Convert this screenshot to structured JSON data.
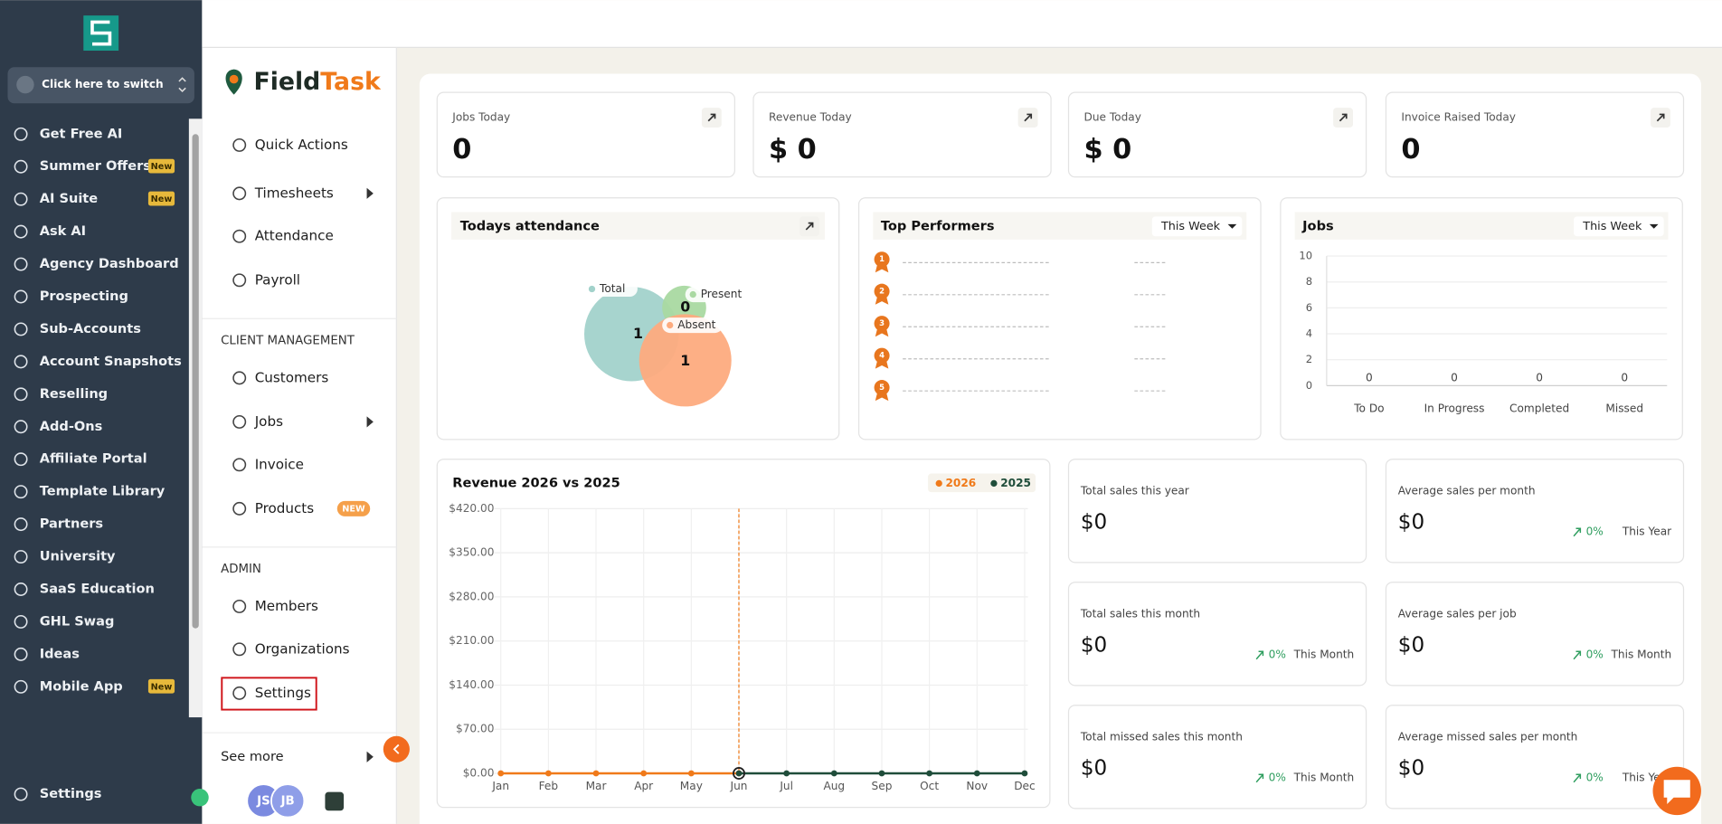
{
  "sidebar": {
    "switch": "Click here to switch",
    "items": [
      {
        "label": "Get Free AI"
      },
      {
        "label": "Summer Offers",
        "badge": "New"
      },
      {
        "label": "AI Suite",
        "badge": "New"
      },
      {
        "label": "Ask AI"
      },
      {
        "label": "Agency Dashboard"
      },
      {
        "label": "Prospecting"
      },
      {
        "label": "Sub-Accounts"
      },
      {
        "label": "Account Snapshots"
      },
      {
        "label": "Reselling"
      },
      {
        "label": "Add-Ons"
      },
      {
        "label": "Affiliate Portal"
      },
      {
        "label": "Template Library"
      },
      {
        "label": "Partners"
      },
      {
        "label": "University"
      },
      {
        "label": "SaaS Education"
      },
      {
        "label": "GHL Swag"
      },
      {
        "label": "Ideas"
      },
      {
        "label": "Mobile App",
        "badge": "New"
      }
    ],
    "footer": "Settings"
  },
  "nav": {
    "brand_a": "Field",
    "brand_b": "Task",
    "groups": [
      {
        "items": [
          {
            "label": "Quick Actions"
          },
          {
            "label": "Timesheets"
          },
          {
            "label": "Attendance"
          },
          {
            "label": "Payroll"
          }
        ]
      },
      {
        "heading": "CLIENT MANAGEMENT",
        "items": [
          {
            "label": "Customers"
          },
          {
            "label": "Jobs"
          },
          {
            "label": "Invoice"
          },
          {
            "label": "Products",
            "badge": "NEW"
          }
        ]
      },
      {
        "heading": "ADMIN",
        "items": [
          {
            "label": "Members"
          },
          {
            "label": "Organizations"
          },
          {
            "label": "Settings"
          }
        ]
      }
    ],
    "see_more": "See more",
    "avatars": [
      "JS",
      "JB"
    ]
  },
  "stats": [
    {
      "label": "Jobs Today",
      "value": "0"
    },
    {
      "label": "Revenue Today",
      "value": "$ 0"
    },
    {
      "label": "Due Today",
      "value": "$ 0"
    },
    {
      "label": "Invoice Raised Today",
      "value": "0"
    }
  ],
  "attendance": {
    "title": "Todays attendance",
    "series": [
      {
        "name": "Total",
        "value": 1
      },
      {
        "name": "Present",
        "value": 0
      },
      {
        "name": "Absent",
        "value": 1
      }
    ]
  },
  "performers": {
    "title": "Top Performers",
    "filter": "This Week",
    "ranks": [
      "1",
      "2",
      "3",
      "4",
      "5"
    ]
  },
  "jobs": {
    "title": "Jobs",
    "filter": "This Week",
    "categories": [
      "To Do",
      "In Progress",
      "Completed",
      "Missed"
    ],
    "values": [
      0,
      0,
      0,
      0
    ],
    "ylim": [
      0,
      10
    ],
    "yticks": [
      0,
      2,
      4,
      6,
      8,
      10
    ]
  },
  "revenue": {
    "title": "Revenue 2026 vs 2025",
    "categories": [
      "Jan",
      "Feb",
      "Mar",
      "Apr",
      "May",
      "Jun",
      "Jul",
      "Aug",
      "Sep",
      "Oct",
      "Nov",
      "Dec"
    ],
    "series": [
      {
        "name": "2026",
        "color": "#f07a1a",
        "values": [
          0,
          0,
          0,
          0,
          0,
          0,
          null,
          null,
          null,
          null,
          null,
          null
        ]
      },
      {
        "name": "2025",
        "color": "#1f4d3a",
        "values": [
          null,
          null,
          null,
          null,
          null,
          0,
          0,
          0,
          0,
          0,
          0,
          0
        ]
      }
    ],
    "ylim": [
      0,
      420
    ],
    "yticks": [
      {
        "value": 0,
        "label": "$0.00"
      },
      {
        "value": 70,
        "label": "$70.00"
      },
      {
        "value": 140,
        "label": "$140.00"
      },
      {
        "value": 210,
        "label": "$210.00"
      },
      {
        "value": 280,
        "label": "$280.00"
      },
      {
        "value": 350,
        "label": "$350.00"
      },
      {
        "value": 420,
        "label": "$420.00"
      }
    ]
  },
  "sales": [
    {
      "label": "Total sales this year",
      "value": "$0"
    },
    {
      "label": "Average sales per month",
      "value": "$0",
      "change": "0%",
      "period": "This Year"
    },
    {
      "label": "Total sales this month",
      "value": "$0",
      "change": "0%",
      "period": "This Month"
    },
    {
      "label": "Average sales per job",
      "value": "$0",
      "change": "0%",
      "period": "This Month"
    },
    {
      "label": "Total missed sales this month",
      "value": "$0",
      "change": "0%",
      "period": "This Month"
    },
    {
      "label": "Average missed sales per month",
      "value": "$0",
      "change": "0%",
      "period": "This Year"
    }
  ]
}
